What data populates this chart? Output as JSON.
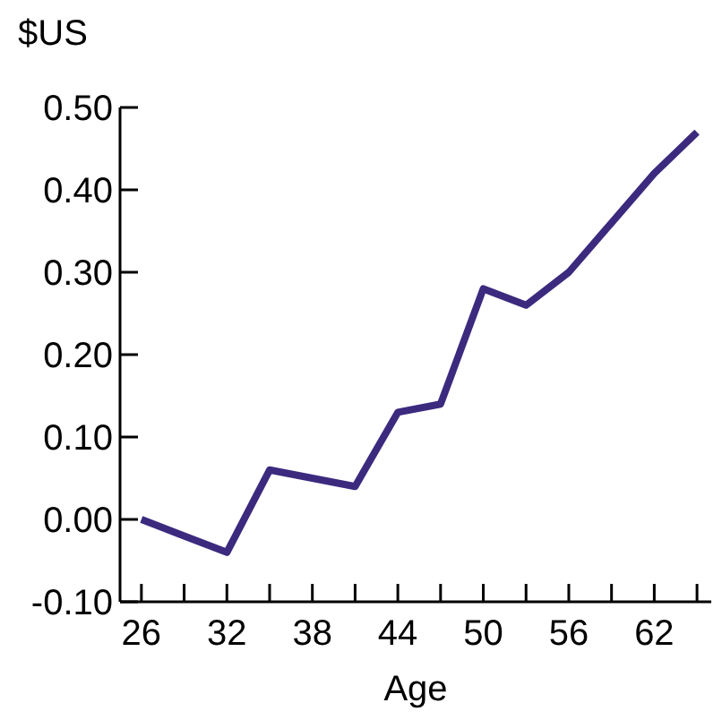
{
  "chart_data": {
    "type": "line",
    "ylabel": "$US",
    "xlabel": "Age",
    "x": [
      26,
      29,
      32,
      35,
      38,
      41,
      44,
      47,
      50,
      53,
      56,
      59,
      62,
      65
    ],
    "series": [
      {
        "color": "#3b2a7e",
        "values": [
          0,
          -0.02,
          -0.04,
          0.06,
          0.05,
          0.04,
          0.13,
          0.14,
          0.28,
          0.26,
          0.3,
          0.36,
          0.42,
          0.47
        ]
      }
    ],
    "xlim": [
      24.5,
      66
    ],
    "xticks": [
      26,
      {
        "value": 29,
        "label": null
      },
      32,
      {
        "value": 35,
        "label": null
      },
      38,
      {
        "value": 41,
        "label": null
      },
      44,
      {
        "value": 47,
        "label": null
      },
      50,
      {
        "value": 53,
        "label": null
      },
      56,
      {
        "value": 59,
        "label": null
      },
      62,
      {
        "value": 65,
        "label": null
      }
    ],
    "ylim": [
      -0.1,
      0.5
    ],
    "yticks": [
      {
        "value": -0.1,
        "label": "-0.10"
      },
      {
        "value": 0,
        "label": "0.00"
      },
      {
        "value": 0.1,
        "label": "0.10"
      },
      {
        "value": 0.2,
        "label": "0.20"
      },
      {
        "value": 0.3,
        "label": "0.30"
      },
      {
        "value": 0.4,
        "label": "0.40"
      },
      {
        "value": 0.5,
        "label": "0.50"
      }
    ],
    "grid": false,
    "legend": false,
    "marker": "none",
    "line_style": "solid"
  }
}
